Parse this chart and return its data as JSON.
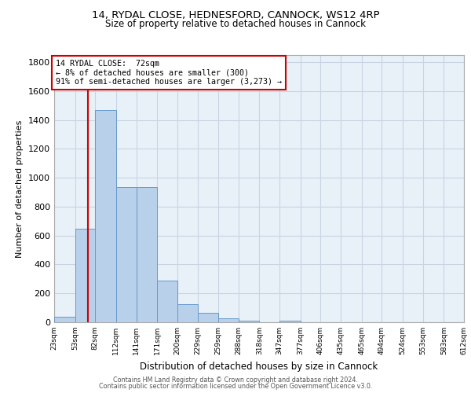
{
  "title_line1": "14, RYDAL CLOSE, HEDNESFORD, CANNOCK, WS12 4RP",
  "title_line2": "Size of property relative to detached houses in Cannock",
  "xlabel": "Distribution of detached houses by size in Cannock",
  "ylabel": "Number of detached properties",
  "annotation_line1": "14 RYDAL CLOSE:  72sqm",
  "annotation_line2": "← 8% of detached houses are smaller (300)",
  "annotation_line3": "91% of semi-detached houses are larger (3,273) →",
  "property_size": 72,
  "bin_edges": [
    23,
    53,
    82,
    112,
    141,
    171,
    200,
    229,
    259,
    288,
    318,
    347,
    377,
    406,
    435,
    465,
    494,
    524,
    553,
    583,
    612
  ],
  "bar_heights": [
    38,
    648,
    1470,
    935,
    935,
    290,
    125,
    63,
    25,
    13,
    0,
    13,
    0,
    0,
    0,
    0,
    0,
    0,
    0,
    0
  ],
  "bar_color": "#b8d0ea",
  "bar_edge_color": "#6699cc",
  "vline_color": "#cc0000",
  "annotation_box_color": "#cc0000",
  "annotation_bg": "#ffffff",
  "grid_color": "#c8d4e4",
  "bg_color": "#e8f0f8",
  "footer_line1": "Contains HM Land Registry data © Crown copyright and database right 2024.",
  "footer_line2": "Contains public sector information licensed under the Open Government Licence v3.0.",
  "ylim": [
    0,
    1850
  ],
  "yticks": [
    0,
    200,
    400,
    600,
    800,
    1000,
    1200,
    1400,
    1600,
    1800
  ]
}
